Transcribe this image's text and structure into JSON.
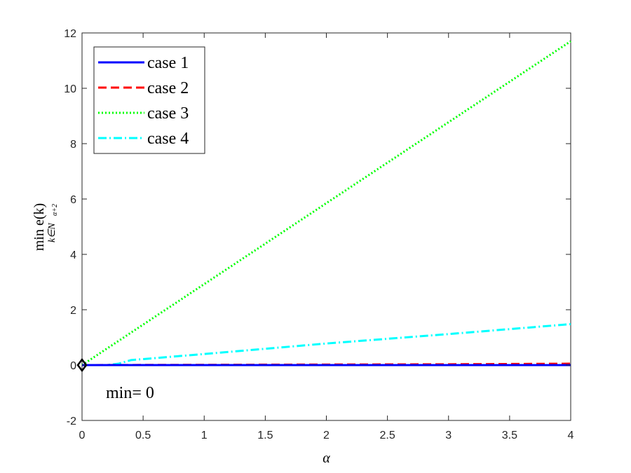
{
  "chart_data": {
    "type": "line",
    "xlabel": "α",
    "ylabel": {
      "main": "min e(k)",
      "subscript": "k∈N",
      "subsubscript": "α+2"
    },
    "xlim": [
      0,
      4
    ],
    "ylim": [
      -2,
      12
    ],
    "xticks": [
      0,
      0.5,
      1,
      1.5,
      2,
      2.5,
      3,
      3.5,
      4
    ],
    "xtick_labels": [
      "0",
      "0.5",
      "1",
      "1.5",
      "2",
      "2.5",
      "3",
      "3.5",
      "4"
    ],
    "yticks": [
      -2,
      0,
      2,
      4,
      6,
      8,
      10,
      12
    ],
    "ytick_labels": [
      "-2",
      "0",
      "2",
      "4",
      "6",
      "8",
      "10",
      "12"
    ],
    "grid": false,
    "legend_position": "top-left",
    "annotation": "min= 0",
    "marker_point": {
      "x": 0,
      "y": 0,
      "shape": "diamond"
    },
    "series": [
      {
        "name": "case 1",
        "color": "#0000ff",
        "dash": "solid",
        "x": [
          0,
          4
        ],
        "y": [
          0,
          0
        ]
      },
      {
        "name": "case 2",
        "color": "#ff0000",
        "dash": "dashed",
        "x": [
          0,
          1,
          2,
          3,
          4
        ],
        "y": [
          0,
          0.01,
          0.02,
          0.03,
          0.05
        ]
      },
      {
        "name": "case 3",
        "color": "#00ff00",
        "dash": "dotted",
        "x": [
          0,
          4
        ],
        "y": [
          0,
          11.7
        ]
      },
      {
        "name": "case 4",
        "color": "#00ffff",
        "dash": "dashdot",
        "x": [
          0,
          0.2,
          0.3,
          0.4,
          1,
          2,
          3,
          4
        ],
        "y": [
          0,
          0,
          0.05,
          0.18,
          0.4,
          0.78,
          1.12,
          1.48
        ]
      }
    ]
  }
}
